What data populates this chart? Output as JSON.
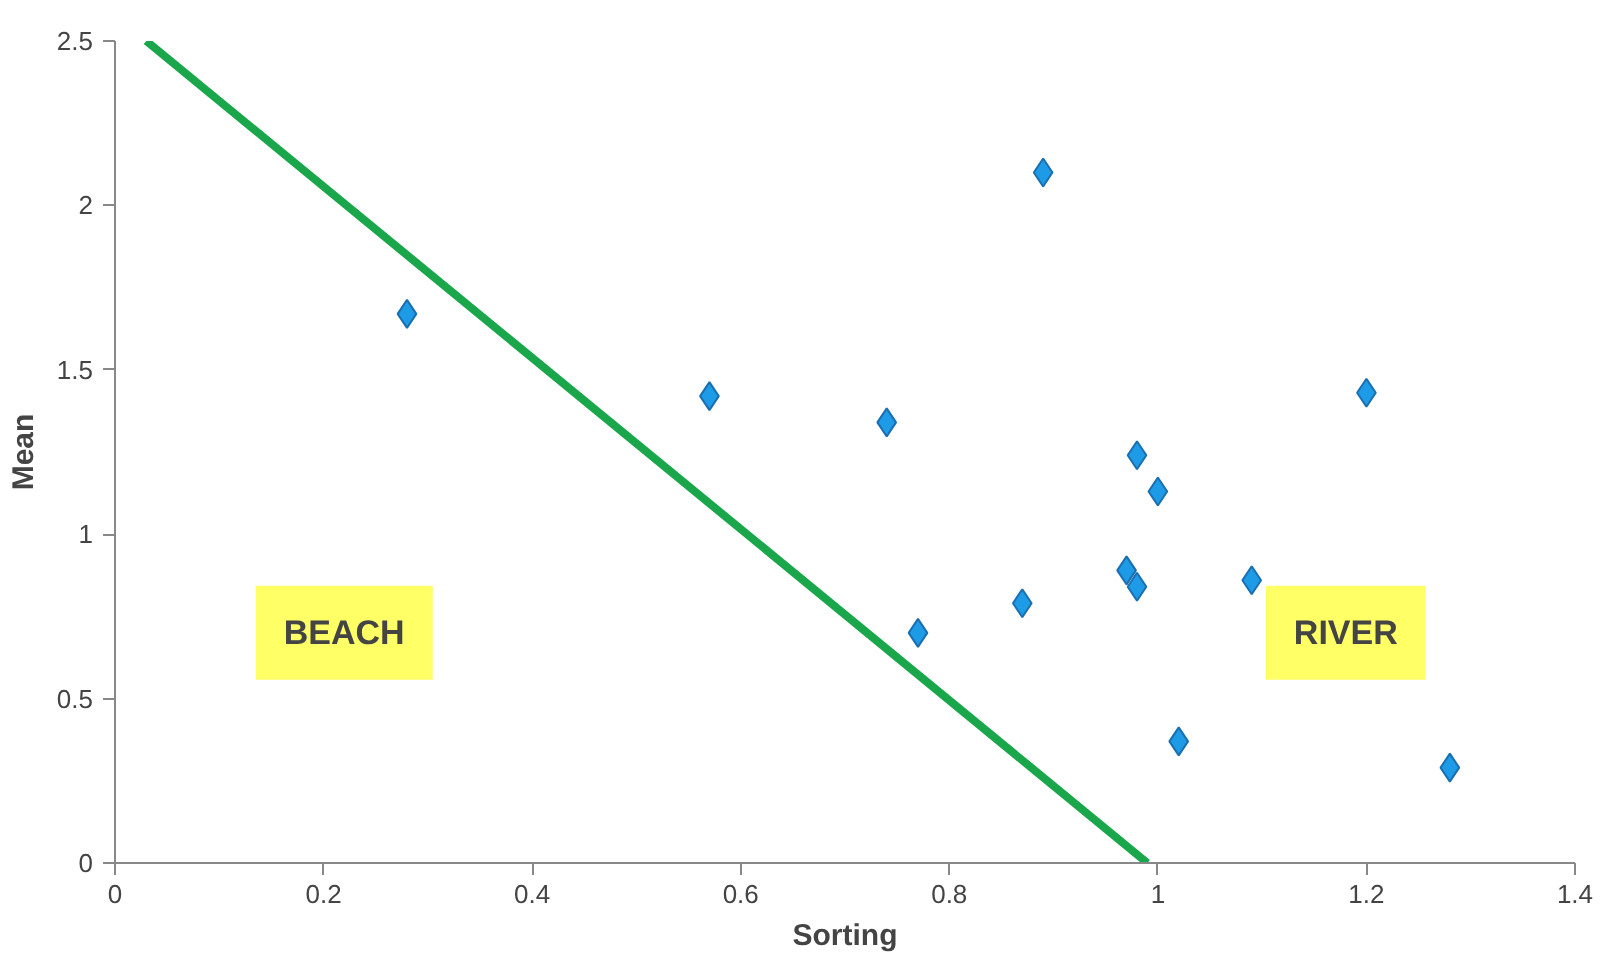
{
  "chart_data": {
    "type": "scatter",
    "xlabel": "Sorting",
    "ylabel": "Mean",
    "xlim": [
      0,
      1.4
    ],
    "ylim": [
      0,
      2.5
    ],
    "xticks": [
      0,
      0.2,
      0.4,
      0.6,
      0.8,
      1,
      1.2,
      1.4
    ],
    "yticks": [
      0,
      0.5,
      1,
      1.5,
      2,
      2.5
    ],
    "grid": false,
    "series": [
      {
        "marker": "diamond",
        "color": "#1e9be6",
        "x": [
          0.28,
          0.57,
          0.74,
          0.77,
          0.87,
          0.89,
          0.98,
          1.0,
          0.97,
          0.98,
          1.02,
          1.09,
          1.2,
          1.28
        ],
        "values": [
          1.67,
          1.42,
          1.34,
          0.7,
          0.79,
          2.1,
          1.24,
          1.13,
          0.89,
          0.84,
          0.37,
          0.86,
          1.43,
          0.29
        ]
      },
      {
        "type": "line",
        "marker": "none",
        "color": "#1aa64a",
        "x": [
          0.03,
          0.99
        ],
        "values": [
          2.5,
          0
        ]
      }
    ],
    "annotations": [
      "BEACH",
      "RIVER"
    ]
  }
}
